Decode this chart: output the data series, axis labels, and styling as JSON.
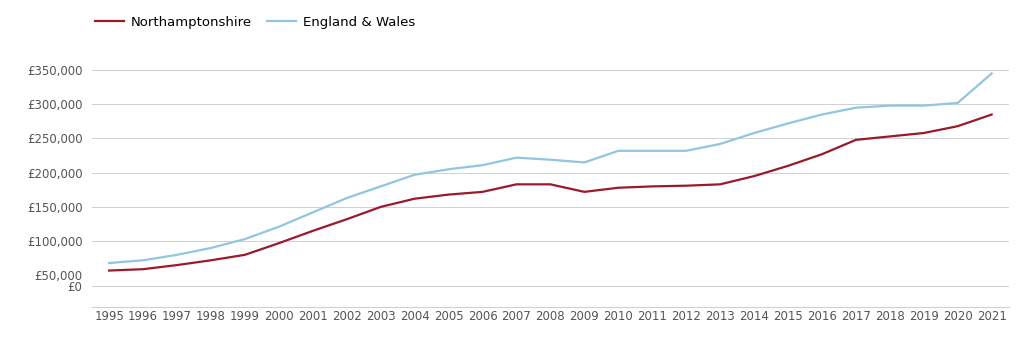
{
  "northamptonshire": {
    "years": [
      1995,
      1996,
      1997,
      1998,
      1999,
      2000,
      2001,
      2002,
      2003,
      2004,
      2005,
      2006,
      2007,
      2008,
      2009,
      2010,
      2011,
      2012,
      2013,
      2014,
      2015,
      2016,
      2017,
      2018,
      2019,
      2020,
      2021
    ],
    "values": [
      57000,
      59000,
      65000,
      72000,
      80000,
      97000,
      115000,
      132000,
      150000,
      162000,
      168000,
      172000,
      183000,
      183000,
      172000,
      178000,
      180000,
      181000,
      183000,
      195000,
      210000,
      227000,
      248000,
      253000,
      258000,
      268000,
      285000
    ]
  },
  "england_wales": {
    "years": [
      1995,
      1996,
      1997,
      1998,
      1999,
      2000,
      2001,
      2002,
      2003,
      2004,
      2005,
      2006,
      2007,
      2008,
      2009,
      2010,
      2011,
      2012,
      2013,
      2014,
      2015,
      2016,
      2017,
      2018,
      2019,
      2020,
      2021
    ],
    "values": [
      68000,
      72000,
      80000,
      90000,
      103000,
      121000,
      142000,
      163000,
      180000,
      197000,
      205000,
      211000,
      222000,
      219000,
      215000,
      232000,
      232000,
      232000,
      242000,
      258000,
      272000,
      285000,
      295000,
      298000,
      298000,
      302000,
      345000
    ]
  },
  "northamptonshire_color": "#9B1A2A",
  "england_wales_color": "#92C5DE",
  "background_color": "#ffffff",
  "grid_color": "#d0d0d0",
  "xlim": [
    1994.5,
    2021.5
  ],
  "ylim_main": [
    50000,
    375000
  ],
  "ylim_zero_gap": true,
  "yticks": [
    50000,
    100000,
    150000,
    200000,
    250000,
    300000,
    350000
  ],
  "ytick_labels": [
    "£50,000",
    "£100,000",
    "£150,000",
    "£200,000",
    "£250,000",
    "£300,000",
    "£350,000"
  ],
  "xticks_odd": [
    1995,
    1997,
    1999,
    2001,
    2003,
    2005,
    2007,
    2009,
    2011,
    2013,
    2015,
    2017,
    2019,
    2021
  ],
  "xticks_even": [
    1996,
    1998,
    2000,
    2002,
    2004,
    2006,
    2008,
    2010,
    2012,
    2014,
    2016,
    2018,
    2020
  ],
  "legend_northamptonshire": "Northamptonshire",
  "legend_england_wales": "England & Wales",
  "line_width": 1.6,
  "tick_label_color": "#555555",
  "tick_label_size": 8.5
}
